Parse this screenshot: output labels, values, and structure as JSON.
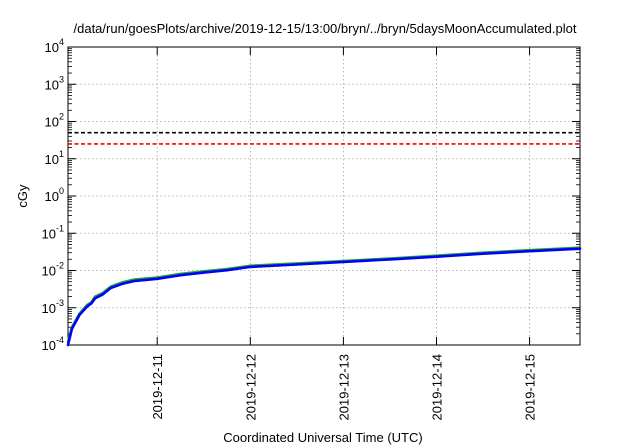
{
  "chart_data": {
    "type": "line",
    "title": "/data/run/goesPlots/archive/2019-12-15/13:00/bryn/../bryn/5daysMoonAccumulated.plot",
    "xlabel": "Coordinated Universal Time (UTC)",
    "ylabel": "cGy",
    "y_scale": "log",
    "ylim": [
      0.0001,
      10000
    ],
    "xlim": [
      "2019-12-10T01:00",
      "2019-12-15T13:00"
    ],
    "grid": true,
    "x_ticks": [
      {
        "x": "2019-12-11T00:00",
        "label": "2019-12-11"
      },
      {
        "x": "2019-12-12T00:00",
        "label": "2019-12-12"
      },
      {
        "x": "2019-12-13T00:00",
        "label": "2019-12-13"
      },
      {
        "x": "2019-12-14T00:00",
        "label": "2019-12-14"
      },
      {
        "x": "2019-12-15T00:00",
        "label": "2019-12-15"
      }
    ],
    "y_ticks": [
      {
        "v": 0.0001,
        "mant": "10",
        "exp": "-4"
      },
      {
        "v": 0.001,
        "mant": "10",
        "exp": "-3"
      },
      {
        "v": 0.01,
        "mant": "10",
        "exp": "-2"
      },
      {
        "v": 0.1,
        "mant": "10",
        "exp": "-1"
      },
      {
        "v": 1,
        "mant": "10",
        "exp": "0"
      },
      {
        "v": 10,
        "mant": "10",
        "exp": "1"
      },
      {
        "v": 100,
        "mant": "10",
        "exp": "2"
      },
      {
        "v": 1000,
        "mant": "10",
        "exp": "3"
      },
      {
        "v": 10000,
        "mant": "10",
        "exp": "4"
      }
    ],
    "thresholds": [
      {
        "value": 50,
        "color": "#000000"
      },
      {
        "value": 25,
        "color": "#ff0000"
      }
    ],
    "series": [
      {
        "color": "#22aa22",
        "x": [
          "2019-12-10T01:00",
          "2019-12-10T02:00",
          "2019-12-10T04:00",
          "2019-12-10T06:00",
          "2019-12-10T07:00",
          "2019-12-10T08:00",
          "2019-12-10T10:00",
          "2019-12-10T12:00",
          "2019-12-10T15:00",
          "2019-12-10T18:00",
          "2019-12-11T00:00",
          "2019-12-11T06:00",
          "2019-12-11T12:00",
          "2019-12-11T18:00",
          "2019-12-12T00:00",
          "2019-12-12T12:00",
          "2019-12-13T00:00",
          "2019-12-13T12:00",
          "2019-12-14T00:00",
          "2019-12-14T12:00",
          "2019-12-15T00:00",
          "2019-12-15T13:00"
        ],
        "values": [
          0.00012,
          0.0003,
          0.0007,
          0.0012,
          0.0014,
          0.002,
          0.0025,
          0.0037,
          0.0048,
          0.0057,
          0.0065,
          0.0081,
          0.0095,
          0.011,
          0.0134,
          0.0155,
          0.018,
          0.021,
          0.025,
          0.03,
          0.035,
          0.041
        ]
      },
      {
        "color": "#0000ff",
        "x": [
          "2019-12-10T01:00",
          "2019-12-10T02:00",
          "2019-12-10T04:00",
          "2019-12-10T06:00",
          "2019-12-10T07:00",
          "2019-12-10T08:00",
          "2019-12-10T10:00",
          "2019-12-10T12:00",
          "2019-12-10T15:00",
          "2019-12-10T18:00",
          "2019-12-11T00:00",
          "2019-12-11T06:00",
          "2019-12-11T12:00",
          "2019-12-11T18:00",
          "2019-12-12T00:00",
          "2019-12-12T12:00",
          "2019-12-13T00:00",
          "2019-12-13T12:00",
          "2019-12-14T00:00",
          "2019-12-14T12:00",
          "2019-12-15T00:00",
          "2019-12-15T13:00"
        ],
        "values": [
          0.0001,
          0.00027,
          0.00065,
          0.0011,
          0.0013,
          0.0018,
          0.0023,
          0.0034,
          0.0044,
          0.0052,
          0.006,
          0.0075,
          0.0088,
          0.0102,
          0.0125,
          0.0145,
          0.017,
          0.0198,
          0.0235,
          0.0283,
          0.033,
          0.0385
        ]
      }
    ]
  }
}
